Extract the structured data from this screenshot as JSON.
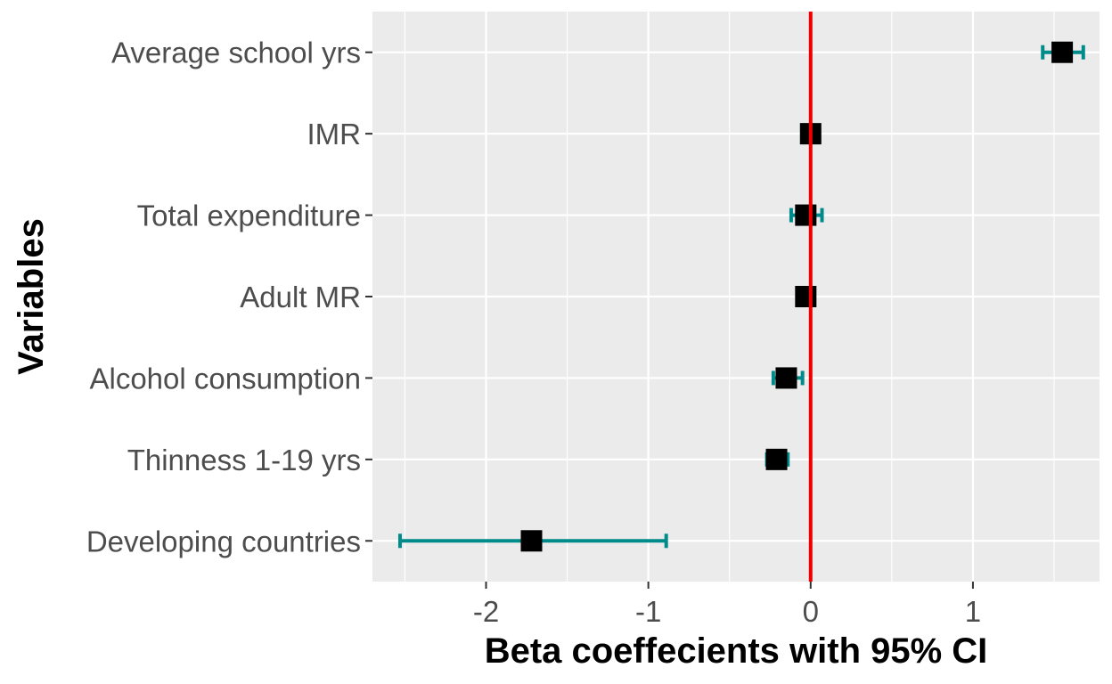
{
  "chart_data": {
    "type": "scatter",
    "subtype": "coefficient-plot-with-error-bars",
    "xlabel": "Beta coeffecients with 95% CI",
    "ylabel": "Variables",
    "xlim": [
      -2.7,
      1.78
    ],
    "x_ticks": [
      -2,
      -1,
      0,
      1
    ],
    "x_tick_labels": [
      "-2",
      "-1",
      "0",
      "1"
    ],
    "categories": [
      "Average school yrs",
      "IMR",
      "Total expenditure",
      "Adult MR",
      "Alcohol consumption",
      "Thinness 1-19 yrs",
      "Developing countries"
    ],
    "estimates": [
      1.55,
      0.0,
      -0.03,
      -0.03,
      -0.15,
      -0.21,
      -1.72
    ],
    "ci_low": [
      1.43,
      -0.01,
      -0.12,
      -0.03,
      -0.23,
      -0.27,
      -2.53
    ],
    "ci_high": [
      1.68,
      0.01,
      0.07,
      -0.03,
      -0.05,
      -0.14,
      -0.89
    ],
    "reference_line_x": 0,
    "grid": true,
    "legend": "none",
    "colors": {
      "panel_background": "#ebebeb",
      "grid": "#ffffff",
      "point": "#000000",
      "errorbar": "#008b8b",
      "reference_line": "#ee0000"
    }
  }
}
